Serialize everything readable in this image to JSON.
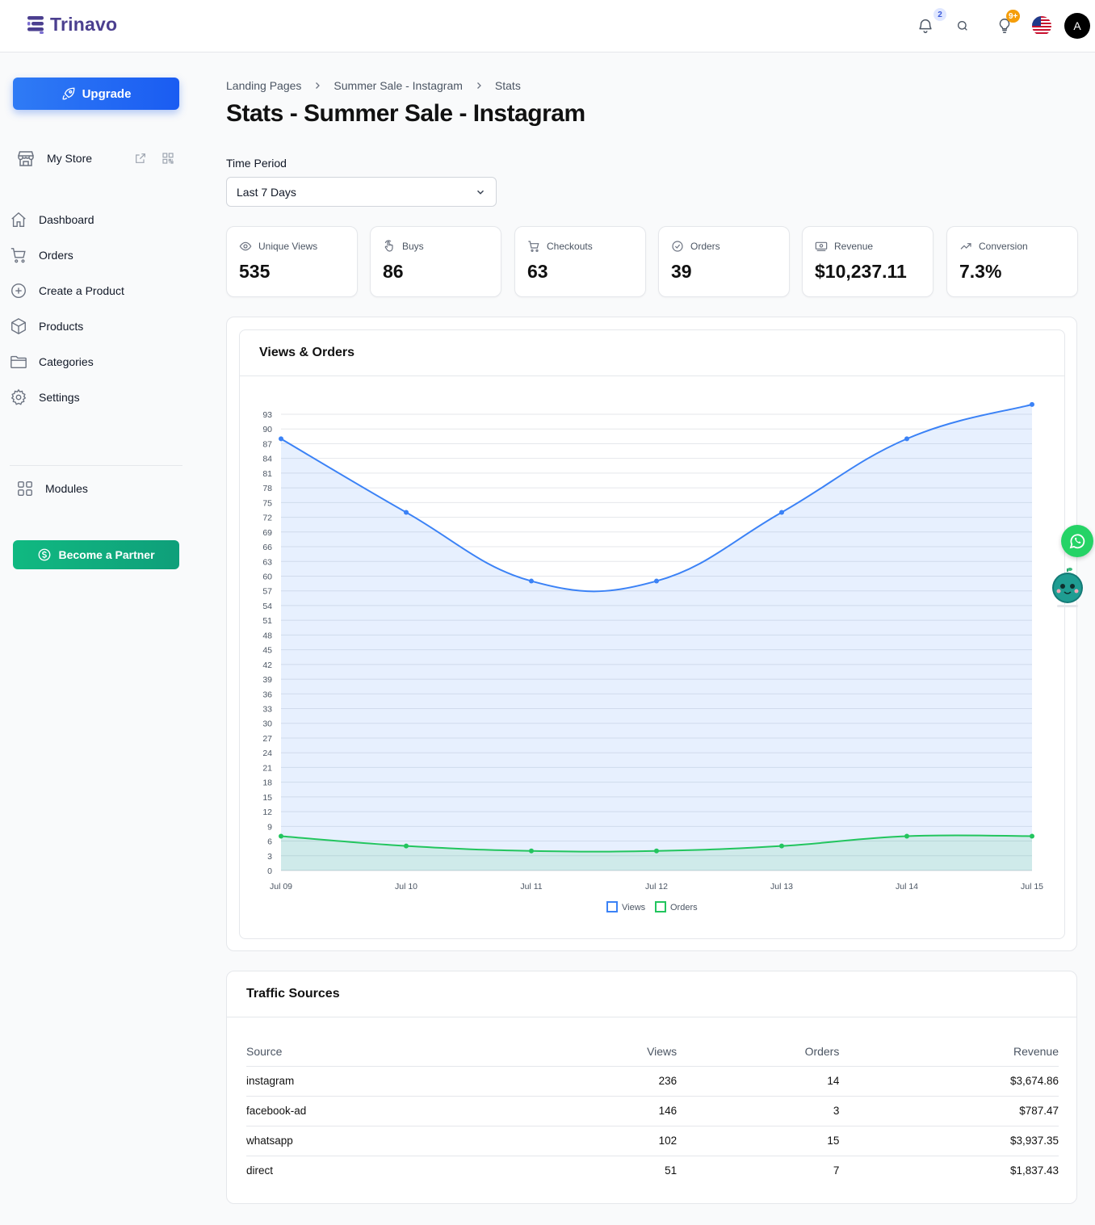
{
  "brand": {
    "name": "Trinavo"
  },
  "header": {
    "notifications_count": "2",
    "tips_count": "9+",
    "avatar_initial": "A",
    "icons": [
      "bell-icon",
      "search-icon",
      "lightbulb-icon",
      "us-flag-icon"
    ]
  },
  "sidebar": {
    "upgrade_label": "Upgrade",
    "store_label": "My Store",
    "nav": [
      {
        "label": "Dashboard",
        "icon": "home-icon"
      },
      {
        "label": "Orders",
        "icon": "cart-icon"
      },
      {
        "label": "Create a Product",
        "icon": "plus-circle-icon"
      },
      {
        "label": "Products",
        "icon": "box-icon"
      },
      {
        "label": "Categories",
        "icon": "folder-icon"
      },
      {
        "label": "Settings",
        "icon": "gear-icon"
      }
    ],
    "modules_label": "Modules",
    "partner_label": "Become a Partner"
  },
  "breadcrumb": [
    "Landing Pages",
    "Summer Sale - Instagram",
    "Stats"
  ],
  "page_title": "Stats - Summer Sale - Instagram",
  "time_period": {
    "label": "Time Period",
    "value": "Last 7 Days"
  },
  "stats": [
    {
      "label": "Unique Views",
      "value": "535",
      "icon": "eye-icon"
    },
    {
      "label": "Buys",
      "value": "86",
      "icon": "tap-icon"
    },
    {
      "label": "Checkouts",
      "value": "63",
      "icon": "cart-icon"
    },
    {
      "label": "Orders",
      "value": "39",
      "icon": "check-circle-icon"
    },
    {
      "label": "Revenue",
      "value": "$10,237.11",
      "icon": "money-icon"
    },
    {
      "label": "Conversion",
      "value": "7.3%",
      "icon": "trend-up-icon"
    }
  ],
  "chart_title": "Views & Orders",
  "chart_data": {
    "type": "area",
    "categories": [
      "Jul 09",
      "Jul 10",
      "Jul 11",
      "Jul 12",
      "Jul 13",
      "Jul 14",
      "Jul 15"
    ],
    "series": [
      {
        "name": "Views",
        "values": [
          88,
          73,
          59,
          59,
          73,
          88,
          95
        ],
        "color": "#3b82f6"
      },
      {
        "name": "Orders",
        "values": [
          7,
          5,
          4,
          4,
          5,
          7,
          7
        ],
        "color": "#22c55e"
      }
    ],
    "ylim": [
      0,
      93
    ],
    "yticks": [
      0,
      3,
      6,
      9,
      12,
      15,
      18,
      21,
      24,
      27,
      30,
      33,
      36,
      39,
      42,
      45,
      48,
      51,
      54,
      57,
      60,
      63,
      66,
      69,
      72,
      75,
      78,
      81,
      84,
      87,
      90,
      93
    ],
    "grid": true,
    "legend": "bottom-center"
  },
  "traffic": {
    "title": "Traffic Sources",
    "columns": [
      "Source",
      "Views",
      "Orders",
      "Revenue"
    ],
    "rows": [
      [
        "instagram",
        "236",
        "14",
        "$3,674.86"
      ],
      [
        "facebook-ad",
        "146",
        "3",
        "$787.47"
      ],
      [
        "whatsapp",
        "102",
        "15",
        "$3,937.35"
      ],
      [
        "direct",
        "51",
        "7",
        "$1,837.43"
      ]
    ]
  }
}
